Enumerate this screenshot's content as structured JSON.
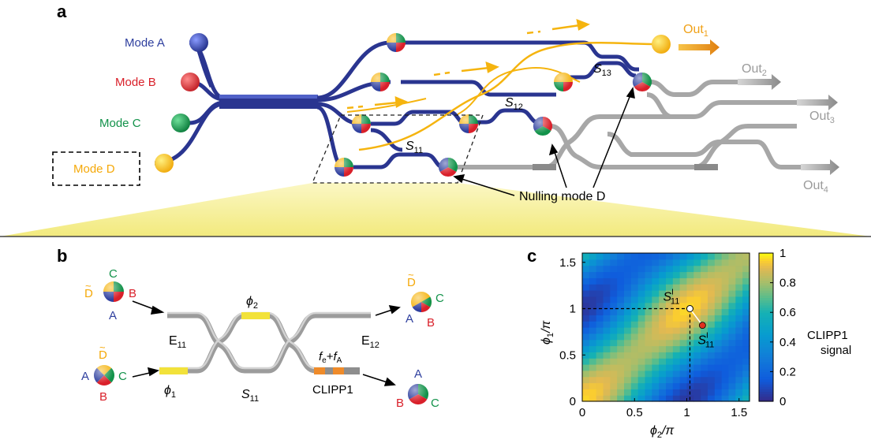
{
  "panels": {
    "a": {
      "letter": "a",
      "modes": [
        {
          "label": "Mode A",
          "color": "#2e3f9e"
        },
        {
          "label": "Mode B",
          "color": "#d9202a"
        },
        {
          "label": "Mode C",
          "color": "#12924a"
        },
        {
          "label": "Mode D",
          "color": "#f5b40f"
        }
      ],
      "outputs": [
        {
          "main": "Out",
          "sub": "1",
          "color": "#f0a21a"
        },
        {
          "main": "Out",
          "sub": "2",
          "color": "#9b9b9b"
        },
        {
          "main": "Out",
          "sub": "3",
          "color": "#9b9b9b"
        },
        {
          "main": "Out",
          "sub": "4",
          "color": "#9b9b9b"
        }
      ],
      "stages": [
        {
          "main": "S",
          "sub": "11"
        },
        {
          "main": "S",
          "sub": "12"
        },
        {
          "main": "S",
          "sub": "13"
        }
      ],
      "nulling_label": "Nulling mode D"
    },
    "b": {
      "letter": "b",
      "phi1": {
        "main": "ϕ",
        "sub": "1"
      },
      "phi2": {
        "main": "ϕ",
        "sub": "2"
      },
      "e11": {
        "main": "E",
        "sub": "11"
      },
      "e12": {
        "main": "E",
        "sub": "12"
      },
      "s11": {
        "main": "S",
        "sub": "11"
      },
      "clipp": "CLIPP1",
      "freq": {
        "fe": "f",
        "fe_sub": "e",
        "plus": "+",
        "fa": "f",
        "fa_sub": "A"
      },
      "mode_letters": {
        "A": "A",
        "B": "B",
        "C": "C",
        "D": "D",
        "tilde": "~"
      }
    },
    "c": {
      "letter": "c",
      "point1": {
        "main": "S",
        "sup": "I",
        "sub": "11"
      },
      "point2": {
        "main": "S",
        "sup": "I",
        "sub": "11"
      }
    }
  },
  "chart_data": {
    "type": "heatmap",
    "x": {
      "label_main": "ϕ",
      "label_sub": "2",
      "label_unit": "/π",
      "range": [
        0,
        1.6
      ],
      "ticks": [
        0,
        0.5,
        1,
        1.5
      ],
      "tick_labels": [
        "0",
        "0.5",
        "1",
        "1.5"
      ]
    },
    "y": {
      "label_main": "ϕ",
      "label_sub": "1",
      "label_unit": "/π",
      "range": [
        0,
        1.6
      ],
      "ticks": [
        0,
        0.5,
        1,
        1.5
      ],
      "tick_labels": [
        "0",
        "0.5",
        "1",
        "1.5"
      ]
    },
    "colorbar": {
      "range": [
        0,
        1
      ],
      "ticks": [
        0,
        0.2,
        0.4,
        0.6,
        0.8,
        1
      ],
      "tick_labels": [
        "0",
        "0.2",
        "0.4",
        "0.6",
        "0.8",
        "1"
      ],
      "label_line1": "CLIPP1",
      "label_line2": "signal",
      "colormap": "parula"
    },
    "grid_size": 24,
    "point_initial": {
      "x": 1.03,
      "y": 1.0,
      "color": "#ffffff"
    },
    "point_optimal": {
      "x": 1.15,
      "y": 0.82,
      "color": "#e03020"
    },
    "crosshair": {
      "x": 1.03,
      "y": 1.0
    }
  }
}
